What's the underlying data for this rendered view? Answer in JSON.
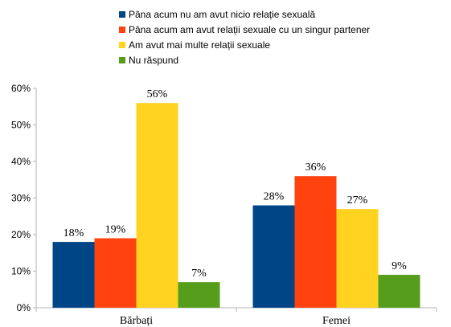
{
  "chart_data": {
    "type": "bar",
    "categories": [
      "Bărbați",
      "Femei"
    ],
    "series": [
      {
        "name": "Pâna acum nu am avut nicio relație sexuală",
        "values": [
          18,
          28
        ],
        "labels": [
          "18%",
          "28%"
        ],
        "color": "#004586"
      },
      {
        "name": "Pâna acum am avut relații sexuale cu un singur partener",
        "values": [
          19,
          36
        ],
        "labels": [
          "19%",
          "36%"
        ],
        "color": "#ff420e"
      },
      {
        "name": "Am avut mai multe relații sexuale",
        "values": [
          56,
          27
        ],
        "labels": [
          "56%",
          "27%"
        ],
        "color": "#ffd320"
      },
      {
        "name": "Nu răspund",
        "values": [
          7,
          9
        ],
        "labels": [
          "7%",
          "9%"
        ],
        "color": "#579d1c"
      }
    ],
    "y_ticks": [
      "0%",
      "10%",
      "20%",
      "30%",
      "40%",
      "50%",
      "60%"
    ],
    "ylim": [
      0,
      60
    ],
    "grid": false,
    "legend_position": "top"
  }
}
